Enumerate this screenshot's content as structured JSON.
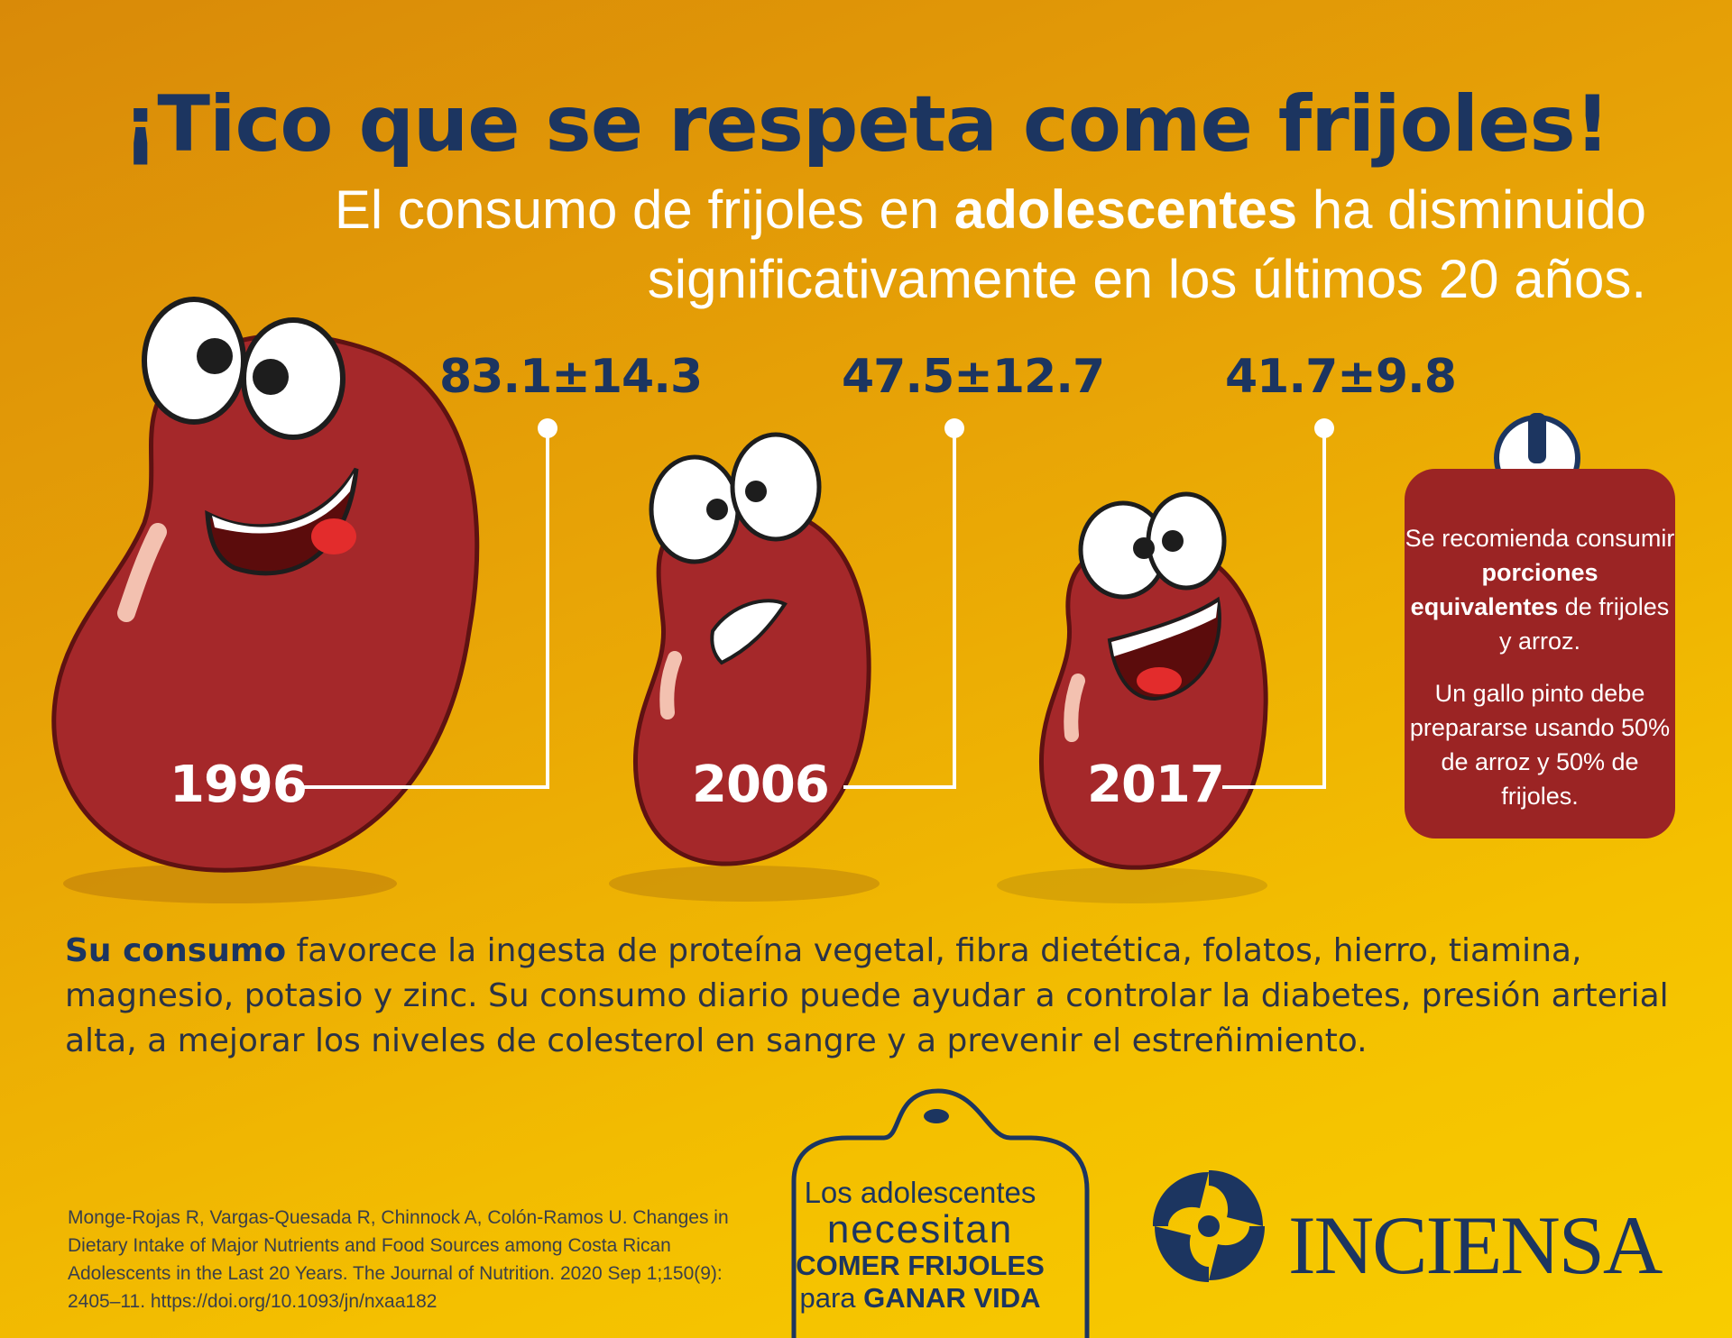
{
  "title": "¡Tico que se respeta come frijoles!",
  "subtitle": {
    "part1": "El consumo de frijoles en ",
    "bold": "adolescentes",
    "part2": " ha disminuido",
    "line2": "significativamente en los últimos 20 años."
  },
  "beans": [
    {
      "year": "1996",
      "value": "83.1±14.3"
    },
    {
      "year": "2006",
      "value": "47.5±12.7"
    },
    {
      "year": "2017",
      "value": "41.7±9.8"
    }
  ],
  "recommendation": {
    "icon": "exclamation-icon",
    "p1_a": "Se recomienda consumir ",
    "p1_bold": "porciones equivalentes",
    "p1_b": " de frijoles y arroz.",
    "p2": "Un gallo pinto debe prepararse usando 50% de arroz y 50% de frijoles."
  },
  "body": {
    "bold": "Su consumo",
    "text": " favorece la ingesta de proteína vegetal, fibra dietética, folatos, hierro, tiamina, magnesio, potasio y zinc. Su consumo diario puede ayudar a controlar la diabetes, presión arterial alta, a mejorar los niveles de colesterol en sangre y a prevenir el estreñimiento."
  },
  "citation": "Monge-Rojas R, Vargas-Quesada R, Chinnock A, Colón-Ramos U. Changes in Dietary Intake of Major Nutrients and Food Sources among Costa Rican Adolescents in the Last 20 Years. The Journal of Nutrition. 2020 Sep 1;150(9): 2405–11. https://doi.org/10.1093/jn/nxaa182",
  "slogan": {
    "line1": "Los adolescentes",
    "line2": "necesitan",
    "line3": "COMER FRIJOLES",
    "line4_a": "para ",
    "line4_bold": "GANAR VIDA"
  },
  "logo": {
    "name": "INCIENSA"
  },
  "colors": {
    "navy": "#1c3560",
    "bean": "#a5282a",
    "box": "#9b2424"
  }
}
